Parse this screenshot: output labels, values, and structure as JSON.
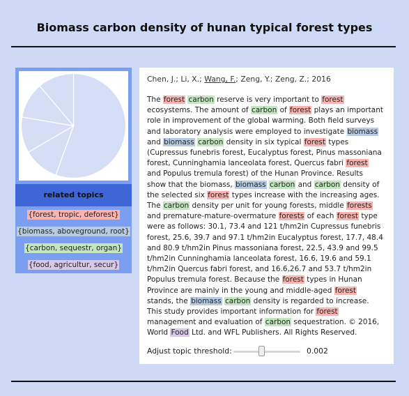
{
  "page": {
    "title": "Biomass carbon density of hunan typical forest types"
  },
  "colors": {
    "background": "#cdd9f5",
    "left_panel": "#7c9ef0",
    "related_header": "#3f66d6",
    "pie_fill": "#d6def6",
    "pie_stroke": "#ffffff",
    "topic_colors": [
      "#f8b4b1",
      "#b7cce2",
      "#c3e6c1",
      "#d9c7e8"
    ]
  },
  "pie": {
    "slices": [
      0.555,
      0.111,
      0.111,
      0.111,
      0.112
    ]
  },
  "sidebar": {
    "header": "related topics",
    "topics": [
      {
        "label": "{forest, tropic, deforest}",
        "color": "#f8b4b1"
      },
      {
        "label": "{biomass, aboveground, root}",
        "color": "#b7cce2"
      },
      {
        "label": "{carbon, sequestr, organ}",
        "color": "#c3e6c1"
      },
      {
        "label": "{food, agricultur, secur}",
        "color": "#d9c7e8"
      }
    ]
  },
  "paper": {
    "authors_pre": "Chen, J.; Li, X.; ",
    "author_link": "Wang, F.",
    "authors_post": "; Zeng, Y.; Zeng, Z.; 2016",
    "abstract": [
      [
        "The ",
        null
      ],
      [
        "forest",
        0
      ],
      [
        " ",
        null
      ],
      [
        "carbon",
        2
      ],
      [
        " reserve is very important to ",
        null
      ],
      [
        "forest",
        0
      ],
      [
        " ecosystems. The amount of ",
        null
      ],
      [
        "carbon",
        2
      ],
      [
        " of ",
        null
      ],
      [
        "forest",
        0
      ],
      [
        " plays an important role in improvement of the global warming. Both field surveys and laboratory analysis were employed to investigate ",
        null
      ],
      [
        "biomass",
        1
      ],
      [
        " and ",
        null
      ],
      [
        "biomass",
        1
      ],
      [
        " ",
        null
      ],
      [
        "carbon",
        2
      ],
      [
        " density in six typical ",
        null
      ],
      [
        "forest",
        0
      ],
      [
        " types (Cupressus funebris forest, Eucalyptus forest, Pinus massoniana forest, Cunninghamia lanceolata forest, Quercus fabri ",
        null
      ],
      [
        "forest",
        0
      ],
      [
        " and Populus tremula forest) of the Hunan Province. Results show that the biomass, ",
        null
      ],
      [
        "biomass",
        1
      ],
      [
        " ",
        null
      ],
      [
        "carbon",
        2
      ],
      [
        " and ",
        null
      ],
      [
        "carbon",
        2
      ],
      [
        " density of the selected six ",
        null
      ],
      [
        "forest",
        0
      ],
      [
        " types increase with the increasing ages. The ",
        null
      ],
      [
        "carbon",
        2
      ],
      [
        " density per unit for young forests, middle ",
        null
      ],
      [
        "forests",
        0
      ],
      [
        " and premature-mature-overmature ",
        null
      ],
      [
        "forests",
        0
      ],
      [
        " of each ",
        null
      ],
      [
        "forest",
        0
      ],
      [
        " type were as follows: 30.1, 73.4 and 121 t/hm2in Cupressus funebris forest, 25.6, 39.7 and 97.1 t/hm2in Eucalyptus forest, 17.7, 48.4 and 80.9 t/hm2in Pinus massoniana forest, 22.5, 43.9 and 99.5 t/hm2in Cunninghamia lanceolata forest, 16.6, 19.6 and 59.1 t/hm2in Quercus fabri forest, and 16.6,26.7 and 53.7 t/hm2in Populus tremula forest. Because the ",
        null
      ],
      [
        "forest",
        0
      ],
      [
        " types in Hunan Province are mainly in the young and middle-aged ",
        null
      ],
      [
        "forest",
        0
      ],
      [
        " stands, the ",
        null
      ],
      [
        "biomass",
        1
      ],
      [
        " ",
        null
      ],
      [
        "carbon",
        2
      ],
      [
        " density is regarded to increase. This study provides important information for ",
        null
      ],
      [
        "forest",
        0
      ],
      [
        " management and evaluation of ",
        null
      ],
      [
        "carbon",
        2
      ],
      [
        " sequestration. © 2016, World ",
        null
      ],
      [
        "Food",
        3
      ],
      [
        " Ltd. and WFL Publishers. All Rights Reserved.",
        null
      ]
    ]
  },
  "slider": {
    "label": "Adjust topic threshold:",
    "value": "0.002",
    "position": 0.42
  }
}
